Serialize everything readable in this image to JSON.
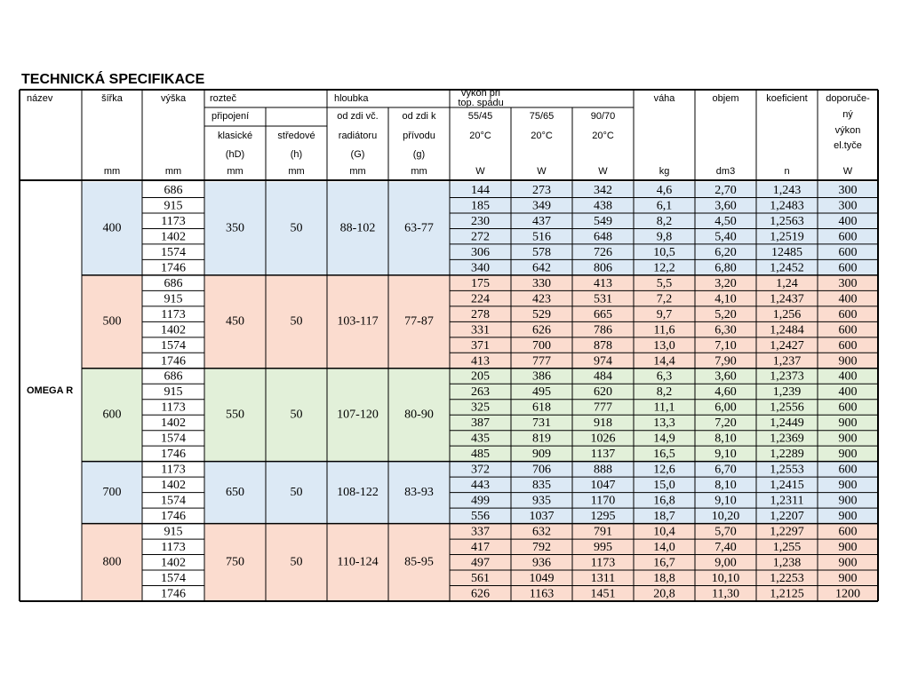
{
  "title": "TECHNICKÁ SPECIFIKACE",
  "header": {
    "name": "název",
    "width": "šířka",
    "height": "výška",
    "spacing": "rozteč",
    "connection": "připojení",
    "classic": [
      "klasické",
      "(hD)"
    ],
    "middle": [
      "středové",
      "(h)"
    ],
    "depth": "hloubka",
    "wall_incl": [
      "od zdi vč.",
      "radiátoru",
      "(G)"
    ],
    "wall_to": [
      "od zdi k",
      "přívodu",
      "(g)"
    ],
    "output": [
      "výkon při",
      "top. spádu"
    ],
    "temps": [
      [
        "55/45",
        "20°C"
      ],
      [
        "75/65",
        "20°C"
      ],
      [
        "90/70",
        "20°C"
      ]
    ],
    "weight": "váha",
    "volume": "objem",
    "coef": "koeficient",
    "recommended": [
      "doporuče-",
      "ný",
      "výkon",
      "el.tyče"
    ],
    "units": [
      "mm",
      "mm",
      "mm",
      "mm",
      "mm",
      "mm",
      "W",
      "W",
      "W",
      "kg",
      "dm3",
      "n",
      "W"
    ]
  },
  "product": "OMEGA R",
  "groups": [
    {
      "width": "400",
      "hd": "350",
      "h": "50",
      "wall_incl": "88-102",
      "wall_to": "63-77",
      "rows": [
        [
          "686",
          "144",
          "273",
          "342",
          "4,6",
          "2,70",
          "1,243",
          "300"
        ],
        [
          "915",
          "185",
          "349",
          "438",
          "6,1",
          "3,60",
          "1,2483",
          "300"
        ],
        [
          "1173",
          "230",
          "437",
          "549",
          "8,2",
          "4,50",
          "1,2563",
          "400"
        ],
        [
          "1402",
          "272",
          "516",
          "648",
          "9,8",
          "5,40",
          "1,2519",
          "600"
        ],
        [
          "1574",
          "306",
          "578",
          "726",
          "10,5",
          "6,20",
          "12485",
          "600"
        ],
        [
          "1746",
          "340",
          "642",
          "806",
          "12,2",
          "6,80",
          "1,2452",
          "600"
        ]
      ]
    },
    {
      "width": "500",
      "hd": "450",
      "h": "50",
      "wall_incl": "103-117",
      "wall_to": "77-87",
      "rows": [
        [
          "686",
          "175",
          "330",
          "413",
          "5,5",
          "3,20",
          "1,24",
          "300"
        ],
        [
          "915",
          "224",
          "423",
          "531",
          "7,2",
          "4,10",
          "1,2437",
          "400"
        ],
        [
          "1173",
          "278",
          "529",
          "665",
          "9,7",
          "5,20",
          "1,256",
          "600"
        ],
        [
          "1402",
          "331",
          "626",
          "786",
          "11,6",
          "6,30",
          "1,2484",
          "600"
        ],
        [
          "1574",
          "371",
          "700",
          "878",
          "13,0",
          "7,10",
          "1,2427",
          "600"
        ],
        [
          "1746",
          "413",
          "777",
          "974",
          "14,4",
          "7,90",
          "1,237",
          "900"
        ]
      ]
    },
    {
      "width": "600",
      "hd": "550",
      "h": "50",
      "wall_incl": "107-120",
      "wall_to": "80-90",
      "rows": [
        [
          "686",
          "205",
          "386",
          "484",
          "6,3",
          "3,60",
          "1,2373",
          "400"
        ],
        [
          "915",
          "263",
          "495",
          "620",
          "8,2",
          "4,60",
          "1,239",
          "400"
        ],
        [
          "1173",
          "325",
          "618",
          "777",
          "11,1",
          "6,00",
          "1,2556",
          "600"
        ],
        [
          "1402",
          "387",
          "731",
          "918",
          "13,3",
          "7,20",
          "1,2449",
          "900"
        ],
        [
          "1574",
          "435",
          "819",
          "1026",
          "14,9",
          "8,10",
          "1,2369",
          "900"
        ],
        [
          "1746",
          "485",
          "909",
          "1137",
          "16,5",
          "9,10",
          "1,2289",
          "900"
        ]
      ]
    },
    {
      "width": "700",
      "hd": "650",
      "h": "50",
      "wall_incl": "108-122",
      "wall_to": "83-93",
      "rows": [
        [
          "1173",
          "372",
          "706",
          "888",
          "12,6",
          "6,70",
          "1,2553",
          "600"
        ],
        [
          "1402",
          "443",
          "835",
          "1047",
          "15,0",
          "8,10",
          "1,2415",
          "900"
        ],
        [
          "1574",
          "499",
          "935",
          "1170",
          "16,8",
          "9,10",
          "1,2311",
          "900"
        ],
        [
          "1746",
          "556",
          "1037",
          "1295",
          "18,7",
          "10,20",
          "1,2207",
          "900"
        ]
      ]
    },
    {
      "width": "800",
      "hd": "750",
      "h": "50",
      "wall_incl": "110-124",
      "wall_to": "85-95",
      "rows": [
        [
          "915",
          "337",
          "632",
          "791",
          "10,4",
          "5,70",
          "1,2297",
          "600"
        ],
        [
          "1173",
          "417",
          "792",
          "995",
          "14,0",
          "7,40",
          "1,255",
          "900"
        ],
        [
          "1402",
          "497",
          "936",
          "1173",
          "16,7",
          "9,00",
          "1,238",
          "900"
        ],
        [
          "1574",
          "561",
          "1049",
          "1311",
          "18,8",
          "10,10",
          "1,2253",
          "900"
        ],
        [
          "1746",
          "626",
          "1163",
          "1451",
          "20,8",
          "11,30",
          "1,2125",
          "1200"
        ]
      ]
    }
  ]
}
